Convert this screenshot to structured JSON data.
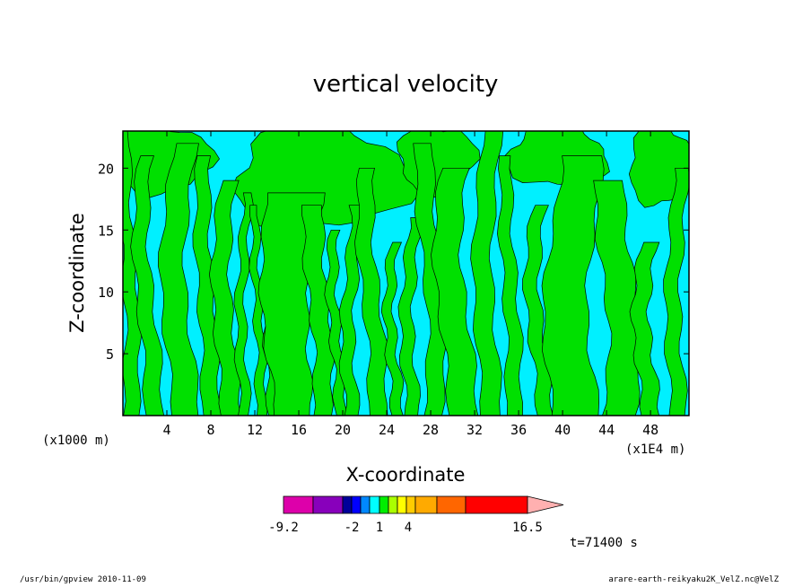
{
  "chart_data": {
    "type": "heatmap",
    "title": "vertical velocity",
    "xlabel": "X-coordinate",
    "ylabel": "Z-coordinate",
    "x_unit_left": "(x1000 m)",
    "x_unit_right": "(x1E4 m)",
    "xlim": [
      0,
      51.5
    ],
    "ylim": [
      0,
      23
    ],
    "x_ticks": [
      4,
      8,
      12,
      16,
      20,
      24,
      28,
      32,
      36,
      40,
      44,
      48
    ],
    "y_ticks": [
      5,
      10,
      15,
      20
    ],
    "colorbar": {
      "labels": [
        {
          "value": -9.2,
          "text": "-9.2"
        },
        {
          "value": -2,
          "text": "-2"
        },
        {
          "value": 1,
          "text": "1"
        },
        {
          "value": 4,
          "text": "4"
        },
        {
          "value": 16.5,
          "text": "16.5"
        }
      ],
      "colors": [
        "#dd00aa",
        "#8800bb",
        "#000099",
        "#0000ff",
        "#0088ff",
        "#00ffff",
        "#00ee00",
        "#aaff00",
        "#ffff00",
        "#ffcc00",
        "#ffaa00",
        "#ff6600",
        "#ff0000",
        "#ff8080",
        "#ffb0b0"
      ],
      "arrow": "right"
    },
    "time_label": "t=71400 s",
    "field_colors": {
      "positive": "#00e000",
      "negative": "#00f0ff"
    }
  },
  "footer": {
    "left": "/usr/bin/gpview   2010-11-09",
    "right": "arare-earth-reikyaku2K_VelZ.nc@VelZ"
  }
}
